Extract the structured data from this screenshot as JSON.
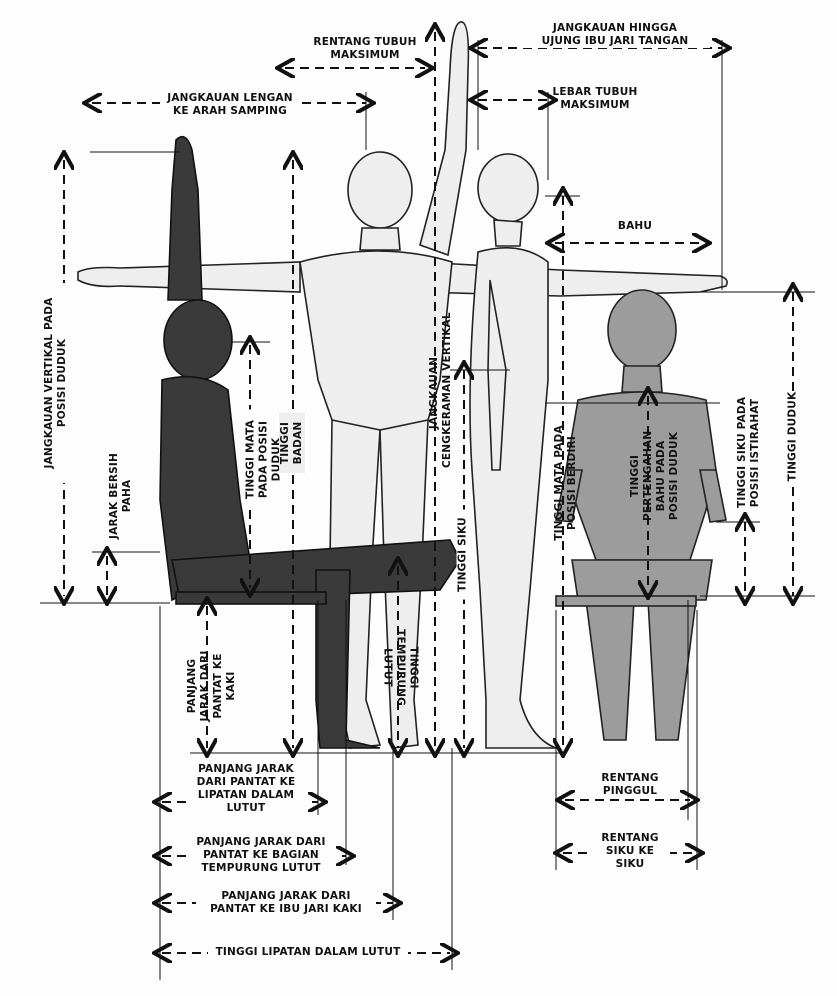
{
  "colors": {
    "ink": "#111111",
    "dark_figure": "#3a3a3a",
    "light_figure": "#eeeeee",
    "mid_figure": "#9c9c9c",
    "background": "#fdfdfd"
  },
  "labels": {
    "rentang_tubuh_maksimum": [
      "RENTANG TUBUH",
      "MAKSIMUM"
    ],
    "jangkauan_hingga_ujung_jari": [
      "JANGKAUAN HINGGA",
      "UJUNG IBU JARI TANGAN"
    ],
    "jangkauan_lengan_samping": [
      "JANGKAUAN LENGAN",
      "KE ARAH SAMPING"
    ],
    "lebar_tubuh_maksimum": [
      "LEBAR TUBUH",
      "MAKSIMUM"
    ],
    "bahu": "BAHU",
    "jangkauan_vertikal_duduk": [
      "JANGKAUAN VERTIKAL PADA",
      "POSISI DUDUK"
    ],
    "jarak_bersih_paha": [
      "JARAK BERSIH",
      "PAHA"
    ],
    "tinggi_mata_duduk": [
      "TINGGI MATA",
      "PADA POSISI",
      "DUDUK"
    ],
    "tinggi_badan": [
      "TINGGI",
      "BADAN"
    ],
    "jangkauan_cengkeraman_vertikal": [
      "JANGKAUAN",
      "CENGKERAMAN VERTIKAL"
    ],
    "tinggi_siku": "TINGGI SIKU",
    "tinggi_mata_berdiri": [
      "TINGGI MATA PADA",
      "POSISI BERDIRI"
    ],
    "tinggi_pertengahan_bahu_duduk": [
      "TINGGI",
      "PERTENGAHAN",
      "BAHU PADA",
      "POSISI DUDUK"
    ],
    "tinggi_siku_istirahat": [
      "TINGGI SIKU PADA",
      "POSISI ISTIRAHAT"
    ],
    "tinggi_duduk": "TINGGI DUDUK",
    "panjang_pantat_ke_kaki": [
      "PANJANG",
      "JARAK DARI",
      "PANTAT KE",
      "KAKI"
    ],
    "tinggi_tempurung_lutut": [
      "TINGGI",
      "TEMPURUNG",
      "LUTUT"
    ],
    "panjang_pantat_lipatan_lutut": [
      "PANJANG JARAK",
      "DARI PANTAT KE",
      "LIPATAN DALAM",
      "LUTUT"
    ],
    "panjang_pantat_tempurung_lutut": [
      "PANJANG JARAK DARI",
      "PANTAT KE BAGIAN",
      "TEMPURUNG LUTUT"
    ],
    "panjang_pantat_ibu_jari_kaki": [
      "PANJANG JARAK DARI",
      "PANTAT KE IBU JARI KAKI"
    ],
    "tinggi_lipatan_dalam_lutut": "TINGGI LIPATAN DALAM LUTUT",
    "rentang_pinggul": [
      "RENTANG",
      "PINGGUL"
    ],
    "rentang_siku_ke_siku": [
      "RENTANG",
      "SIKU KE",
      "SIKU"
    ]
  }
}
